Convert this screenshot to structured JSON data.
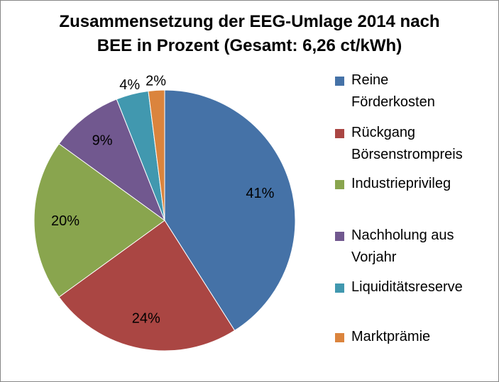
{
  "chart_data": {
    "type": "pie",
    "title_line1": "Zusammensetzung der EEG-Umlage 2014 nach",
    "title_line2": "BEE in Prozent (Gesamt: 6,26 ct/kWh)",
    "slices": [
      {
        "label_lines": [
          "Reine",
          "Förderkosten"
        ],
        "value": 41,
        "label": "41%",
        "color": "#4572A7"
      },
      {
        "label_lines": [
          "Rückgang",
          "Börsenstrompreis"
        ],
        "value": 24,
        "label": "24%",
        "color": "#AA4643"
      },
      {
        "label_lines": [
          "Industrieprivileg"
        ],
        "value": 20,
        "label": "20%",
        "color": "#89A54E"
      },
      {
        "label_lines": [
          "Nachholung aus",
          "Vorjahr"
        ],
        "value": 9,
        "label": "9%",
        "color": "#71588F"
      },
      {
        "label_lines": [
          "Liquiditätsreserve"
        ],
        "value": 4,
        "label": "4%",
        "color": "#4198AF"
      },
      {
        "label_lines": [
          "Marktprämie"
        ],
        "value": 2,
        "label": "2%",
        "color": "#DB843D"
      }
    ],
    "legend_position": "right"
  }
}
